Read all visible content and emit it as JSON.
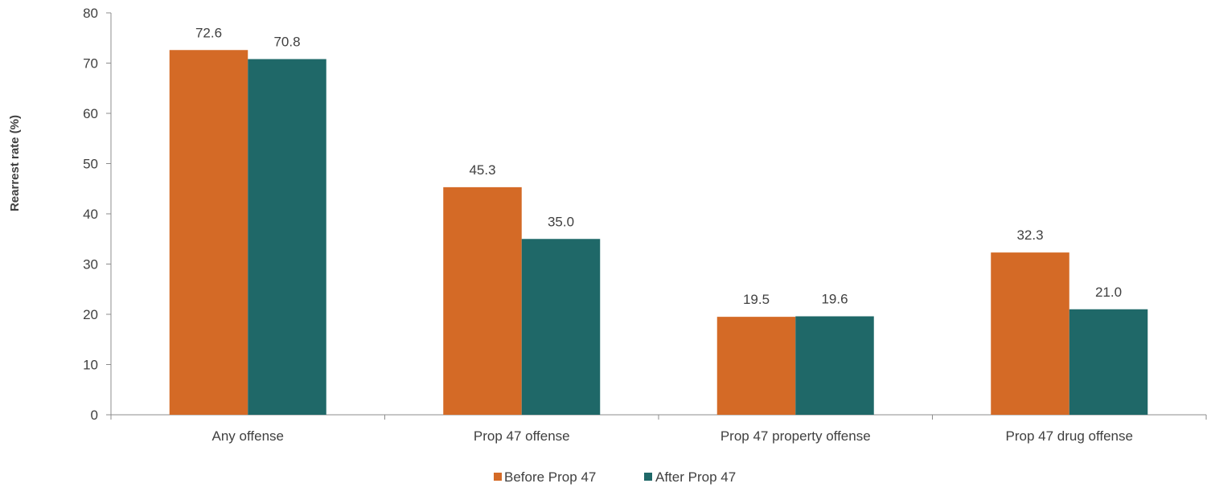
{
  "chart_data": {
    "type": "bar",
    "title": "",
    "xlabel": "",
    "ylabel": "Rearrest rate (%)",
    "ylim": [
      0,
      80
    ],
    "yticks": [
      0,
      10,
      20,
      30,
      40,
      50,
      60,
      70,
      80
    ],
    "categories": [
      "Any offense",
      "Prop 47 offense",
      "Prop 47 property offense",
      "Prop 47 drug offense"
    ],
    "series": [
      {
        "name": "Before Prop 47",
        "color": "#d46a26",
        "values": [
          72.6,
          45.3,
          19.5,
          32.3
        ],
        "labels": [
          "72.6",
          "45.3",
          "19.5",
          "32.3"
        ]
      },
      {
        "name": "After Prop 47",
        "color": "#1f6868",
        "values": [
          70.8,
          35.0,
          19.6,
          21.0
        ],
        "labels": [
          "70.8",
          "35.0",
          "19.6",
          "21.0"
        ]
      }
    ],
    "grid": false,
    "legend_position": "bottom"
  }
}
